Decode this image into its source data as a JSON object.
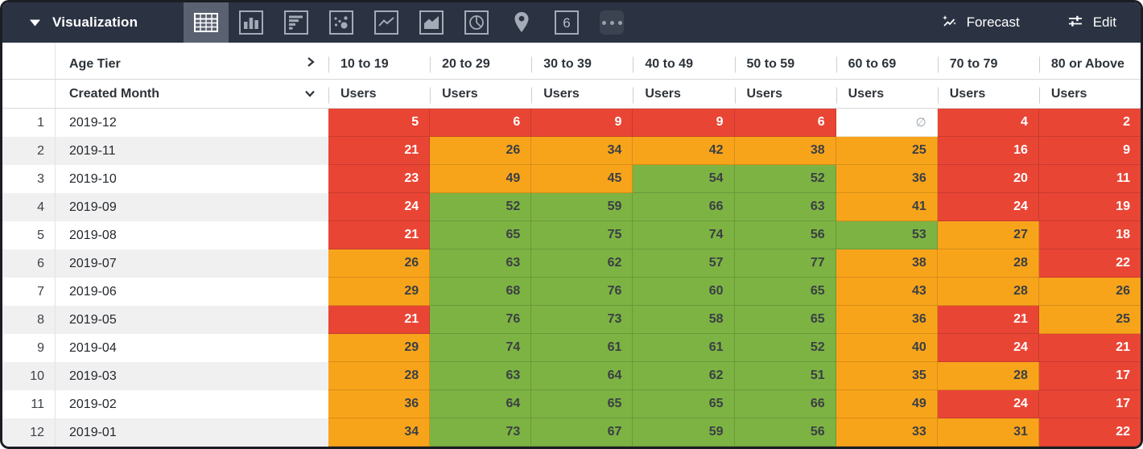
{
  "topbar": {
    "title": "Visualization",
    "collapse_icon": "triangle-down-icon",
    "viz_icons": [
      {
        "id": "table",
        "selected": true
      },
      {
        "id": "column",
        "selected": false
      },
      {
        "id": "bar",
        "selected": false
      },
      {
        "id": "scatter",
        "selected": false
      },
      {
        "id": "line",
        "selected": false
      },
      {
        "id": "area",
        "selected": false
      },
      {
        "id": "pie",
        "selected": false
      },
      {
        "id": "map",
        "selected": false
      },
      {
        "id": "single-value",
        "selected": false,
        "label": "6"
      },
      {
        "id": "more",
        "selected": false
      }
    ],
    "forecast_label": "Forecast",
    "edit_label": "Edit"
  },
  "table": {
    "pivot_dimension_label": "Age Tier",
    "row_dimension_label": "Created Month",
    "measure_label": "Users",
    "columns": [
      "10 to 19",
      "20 to 29",
      "30 to 39",
      "40 to 49",
      "50 to 59",
      "60 to 69",
      "70 to 79",
      "80 or Above"
    ],
    "null_symbol": "∅",
    "thresholds": {
      "red_max": 24,
      "orange_max": 50
    },
    "rows": [
      {
        "index": "1",
        "month": "2019-12",
        "values": [
          5,
          6,
          9,
          9,
          6,
          null,
          4,
          2
        ]
      },
      {
        "index": "2",
        "month": "2019-11",
        "values": [
          21,
          26,
          34,
          42,
          38,
          25,
          16,
          9
        ]
      },
      {
        "index": "3",
        "month": "2019-10",
        "values": [
          23,
          49,
          45,
          54,
          52,
          36,
          20,
          11
        ]
      },
      {
        "index": "4",
        "month": "2019-09",
        "values": [
          24,
          52,
          59,
          66,
          63,
          41,
          24,
          19
        ]
      },
      {
        "index": "5",
        "month": "2019-08",
        "values": [
          21,
          65,
          75,
          74,
          56,
          53,
          27,
          18
        ]
      },
      {
        "index": "6",
        "month": "2019-07",
        "values": [
          26,
          63,
          62,
          57,
          77,
          38,
          28,
          22
        ]
      },
      {
        "index": "7",
        "month": "2019-06",
        "values": [
          29,
          68,
          76,
          60,
          65,
          43,
          28,
          26
        ]
      },
      {
        "index": "8",
        "month": "2019-05",
        "values": [
          21,
          76,
          73,
          58,
          65,
          36,
          21,
          25
        ]
      },
      {
        "index": "9",
        "month": "2019-04",
        "values": [
          29,
          74,
          61,
          61,
          52,
          40,
          24,
          21
        ]
      },
      {
        "index": "10",
        "month": "2019-03",
        "values": [
          28,
          63,
          64,
          62,
          51,
          35,
          28,
          17
        ]
      },
      {
        "index": "11",
        "month": "2019-02",
        "values": [
          36,
          64,
          65,
          65,
          66,
          49,
          24,
          17
        ]
      },
      {
        "index": "12",
        "month": "2019-01",
        "values": [
          34,
          73,
          67,
          59,
          56,
          33,
          31,
          22
        ]
      }
    ]
  },
  "colors": {
    "red": "#E94535",
    "orange": "#F8A41B",
    "green": "#7DB343",
    "topbar_bg": "#2B3343",
    "selected_tile_bg": "#5A6170"
  }
}
